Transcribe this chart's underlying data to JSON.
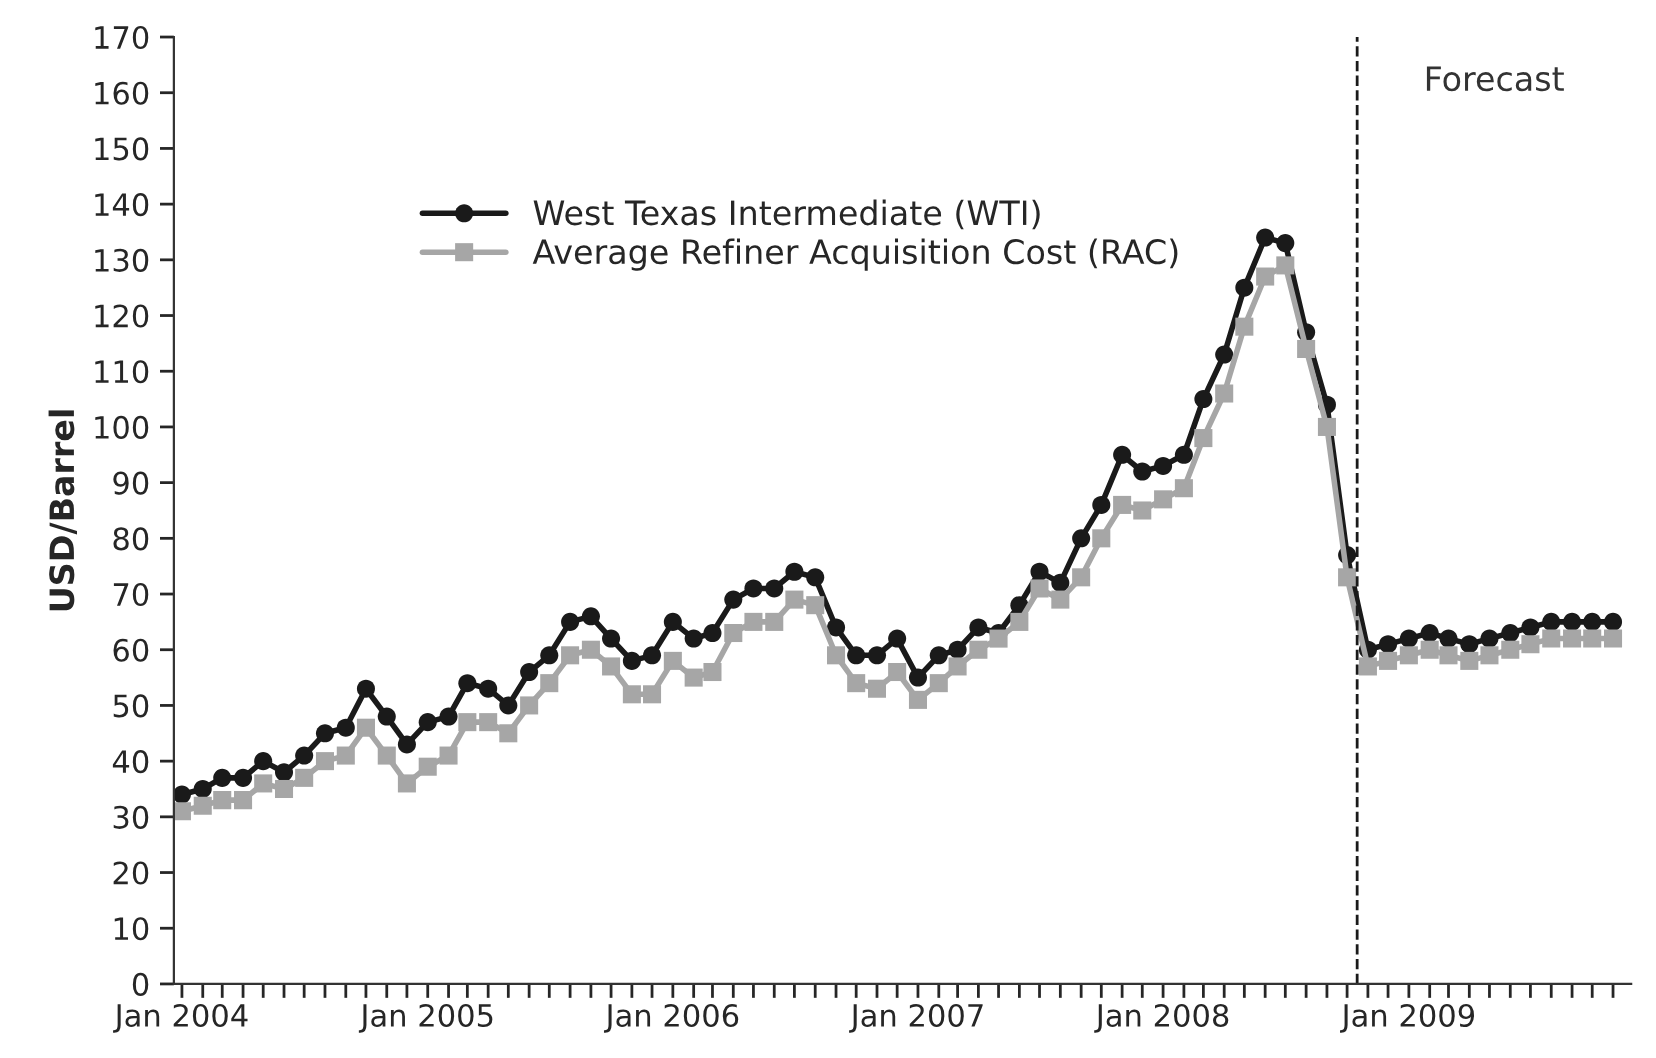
{
  "chart_data": {
    "type": "line",
    "ylabel": "USD/Barrel",
    "x": [
      "2004-01",
      "2004-02",
      "2004-03",
      "2004-04",
      "2004-05",
      "2004-06",
      "2004-07",
      "2004-08",
      "2004-09",
      "2004-10",
      "2004-11",
      "2004-12",
      "2005-01",
      "2005-02",
      "2005-03",
      "2005-04",
      "2005-05",
      "2005-06",
      "2005-07",
      "2005-08",
      "2005-09",
      "2005-10",
      "2005-11",
      "2005-12",
      "2006-01",
      "2006-02",
      "2006-03",
      "2006-04",
      "2006-05",
      "2006-06",
      "2006-07",
      "2006-08",
      "2006-09",
      "2006-10",
      "2006-11",
      "2006-12",
      "2007-01",
      "2007-02",
      "2007-03",
      "2007-04",
      "2007-05",
      "2007-06",
      "2007-07",
      "2007-08",
      "2007-09",
      "2007-10",
      "2007-11",
      "2007-12",
      "2008-01",
      "2008-02",
      "2008-03",
      "2008-04",
      "2008-05",
      "2008-06",
      "2008-07",
      "2008-08",
      "2008-09",
      "2008-10",
      "2008-11",
      "2008-12",
      "2009-01",
      "2009-02",
      "2009-03",
      "2009-04",
      "2009-05",
      "2009-06",
      "2009-07",
      "2009-08",
      "2009-09",
      "2009-10",
      "2009-11"
    ],
    "series": [
      {
        "name": "West Texas Intermediate (WTI)",
        "color": "#1a1a1a",
        "marker": "circle",
        "values": [
          34,
          35,
          37,
          37,
          40,
          38,
          41,
          45,
          46,
          53,
          48,
          43,
          47,
          48,
          54,
          53,
          50,
          56,
          59,
          65,
          66,
          62,
          58,
          59,
          65,
          62,
          63,
          69,
          71,
          71,
          74,
          73,
          64,
          59,
          59,
          62,
          55,
          59,
          60,
          64,
          63,
          68,
          74,
          72,
          80,
          86,
          95,
          92,
          93,
          95,
          105,
          113,
          125,
          134,
          133,
          117,
          104,
          77,
          60,
          61,
          62,
          63,
          62,
          61,
          62,
          63,
          64,
          65,
          65,
          65,
          65
        ]
      },
      {
        "name": "Average Refiner Acquisition Cost (RAC)",
        "color": "#a6a6a6",
        "marker": "square",
        "values": [
          31,
          32,
          33,
          33,
          36,
          35,
          37,
          40,
          41,
          46,
          41,
          36,
          39,
          41,
          47,
          47,
          45,
          50,
          54,
          59,
          60,
          57,
          52,
          52,
          58,
          55,
          56,
          63,
          65,
          65,
          69,
          68,
          59,
          54,
          53,
          56,
          51,
          54,
          57,
          60,
          62,
          65,
          71,
          69,
          73,
          80,
          86,
          85,
          87,
          89,
          98,
          106,
          118,
          127,
          129,
          114,
          100,
          73,
          57,
          58,
          59,
          60,
          59,
          58,
          59,
          60,
          61,
          62,
          62,
          62,
          62
        ]
      }
    ],
    "ylim": [
      0,
      170
    ],
    "yticks": [
      0,
      10,
      20,
      30,
      40,
      50,
      60,
      70,
      80,
      90,
      100,
      110,
      120,
      130,
      140,
      150,
      160,
      170
    ],
    "xlim": [
      "2003-12-20",
      "2009-11-28"
    ],
    "xticks": [
      {
        "value": "2004-01",
        "label": "Jan 2004"
      },
      {
        "value": "2004-02",
        "label": null
      },
      {
        "value": "2004-03",
        "label": null
      },
      {
        "value": "2004-04",
        "label": null
      },
      {
        "value": "2004-05",
        "label": null
      },
      {
        "value": "2004-06",
        "label": null
      },
      {
        "value": "2004-07",
        "label": null
      },
      {
        "value": "2004-08",
        "label": null
      },
      {
        "value": "2004-09",
        "label": null
      },
      {
        "value": "2004-10",
        "label": null
      },
      {
        "value": "2004-11",
        "label": null
      },
      {
        "value": "2004-12",
        "label": null
      },
      {
        "value": "2005-01",
        "label": "Jan 2005"
      },
      {
        "value": "2005-02",
        "label": null
      },
      {
        "value": "2005-03",
        "label": null
      },
      {
        "value": "2005-04",
        "label": null
      },
      {
        "value": "2005-05",
        "label": null
      },
      {
        "value": "2005-06",
        "label": null
      },
      {
        "value": "2005-07",
        "label": null
      },
      {
        "value": "2005-08",
        "label": null
      },
      {
        "value": "2005-09",
        "label": null
      },
      {
        "value": "2005-10",
        "label": null
      },
      {
        "value": "2005-11",
        "label": null
      },
      {
        "value": "2005-12",
        "label": null
      },
      {
        "value": "2006-01",
        "label": "Jan 2006"
      },
      {
        "value": "2006-02",
        "label": null
      },
      {
        "value": "2006-03",
        "label": null
      },
      {
        "value": "2006-04",
        "label": null
      },
      {
        "value": "2006-05",
        "label": null
      },
      {
        "value": "2006-06",
        "label": null
      },
      {
        "value": "2006-07",
        "label": null
      },
      {
        "value": "2006-08",
        "label": null
      },
      {
        "value": "2006-09",
        "label": null
      },
      {
        "value": "2006-10",
        "label": null
      },
      {
        "value": "2006-11",
        "label": null
      },
      {
        "value": "2006-12",
        "label": null
      },
      {
        "value": "2007-01",
        "label": "Jan 2007"
      },
      {
        "value": "2007-02",
        "label": null
      },
      {
        "value": "2007-03",
        "label": null
      },
      {
        "value": "2007-04",
        "label": null
      },
      {
        "value": "2007-05",
        "label": null
      },
      {
        "value": "2007-06",
        "label": null
      },
      {
        "value": "2007-07",
        "label": null
      },
      {
        "value": "2007-08",
        "label": null
      },
      {
        "value": "2007-09",
        "label": null
      },
      {
        "value": "2007-10",
        "label": null
      },
      {
        "value": "2007-11",
        "label": null
      },
      {
        "value": "2007-12",
        "label": null
      },
      {
        "value": "2008-01",
        "label": "Jan 2008"
      },
      {
        "value": "2008-02",
        "label": null
      },
      {
        "value": "2008-03",
        "label": null
      },
      {
        "value": "2008-04",
        "label": null
      },
      {
        "value": "2008-05",
        "label": null
      },
      {
        "value": "2008-06",
        "label": null
      },
      {
        "value": "2008-07",
        "label": null
      },
      {
        "value": "2008-08",
        "label": null
      },
      {
        "value": "2008-09",
        "label": null
      },
      {
        "value": "2008-10",
        "label": null
      },
      {
        "value": "2008-11",
        "label": null
      },
      {
        "value": "2008-12",
        "label": null
      },
      {
        "value": "2009-01",
        "label": "Jan 2009"
      },
      {
        "value": "2009-02",
        "label": null
      },
      {
        "value": "2009-03",
        "label": null
      },
      {
        "value": "2009-04",
        "label": null
      },
      {
        "value": "2009-05",
        "label": null
      },
      {
        "value": "2009-06",
        "label": null
      },
      {
        "value": "2009-07",
        "label": null
      },
      {
        "value": "2009-08",
        "label": null
      },
      {
        "value": "2009-09",
        "label": null
      },
      {
        "value": "2009-10",
        "label": null
      },
      {
        "value": "2009-11",
        "label": null
      }
    ],
    "ref_lines": [
      {
        "axis": "x",
        "value": "2008-10-16",
        "label": "Forecast",
        "color": "#1a1a1a",
        "line_style": "dashed"
      }
    ],
    "legend": "top left",
    "grid": false,
    "line_style": "solid"
  }
}
